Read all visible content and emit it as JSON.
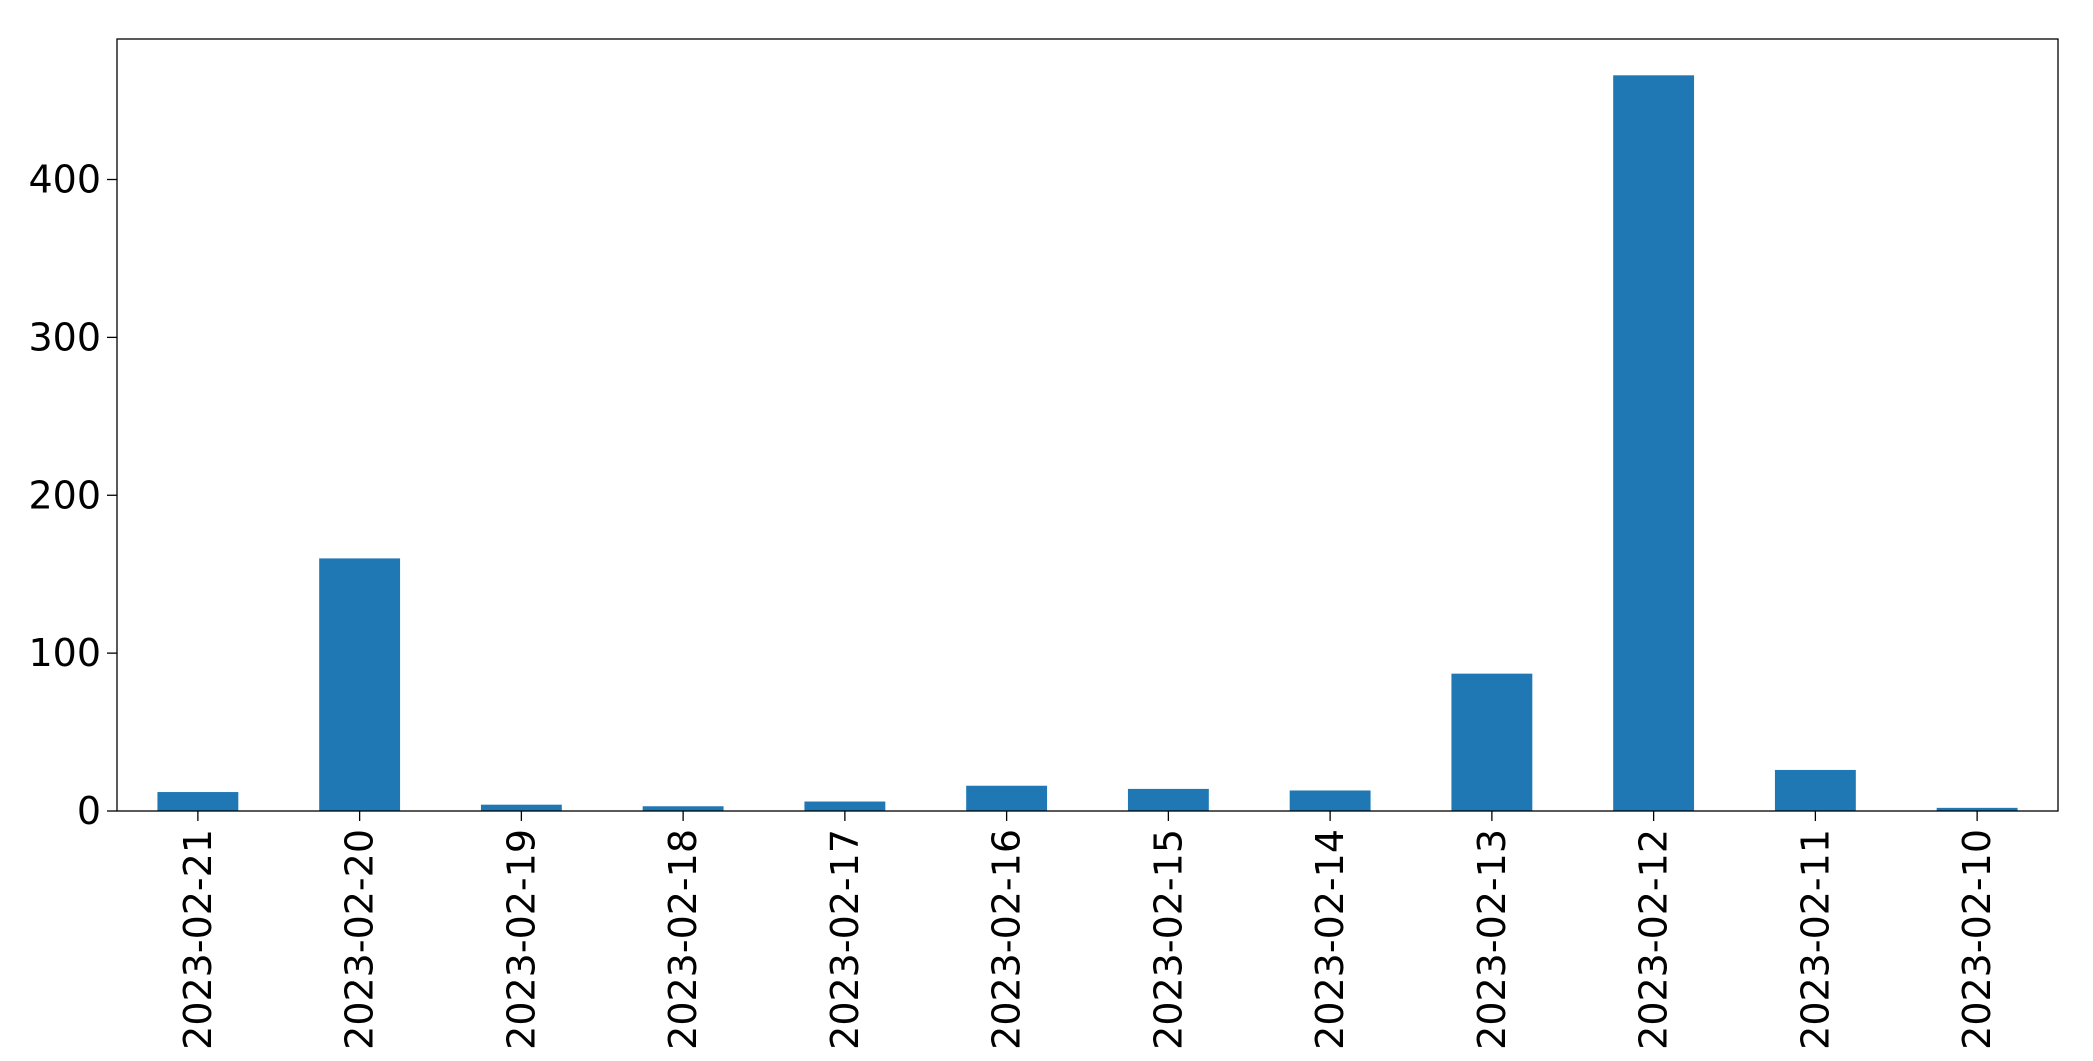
{
  "chart_data": {
    "type": "bar",
    "title": "",
    "xlabel": "",
    "ylabel": "",
    "categories": [
      "2023-02-21",
      "2023-02-20",
      "2023-02-19",
      "2023-02-18",
      "2023-02-17",
      "2023-02-16",
      "2023-02-15",
      "2023-02-14",
      "2023-02-13",
      "2023-02-12",
      "2023-02-11",
      "2023-02-10"
    ],
    "values": [
      12,
      160,
      4,
      3,
      6,
      16,
      14,
      13,
      87,
      466,
      26,
      2
    ],
    "ylim": [
      0,
      489
    ],
    "yticks": [
      0,
      100,
      200,
      300,
      400
    ],
    "ytick_labels": [
      "0",
      "100",
      "200",
      "300",
      "400"
    ],
    "bar_color": "#1f77b4",
    "grid": false,
    "legend": false
  }
}
